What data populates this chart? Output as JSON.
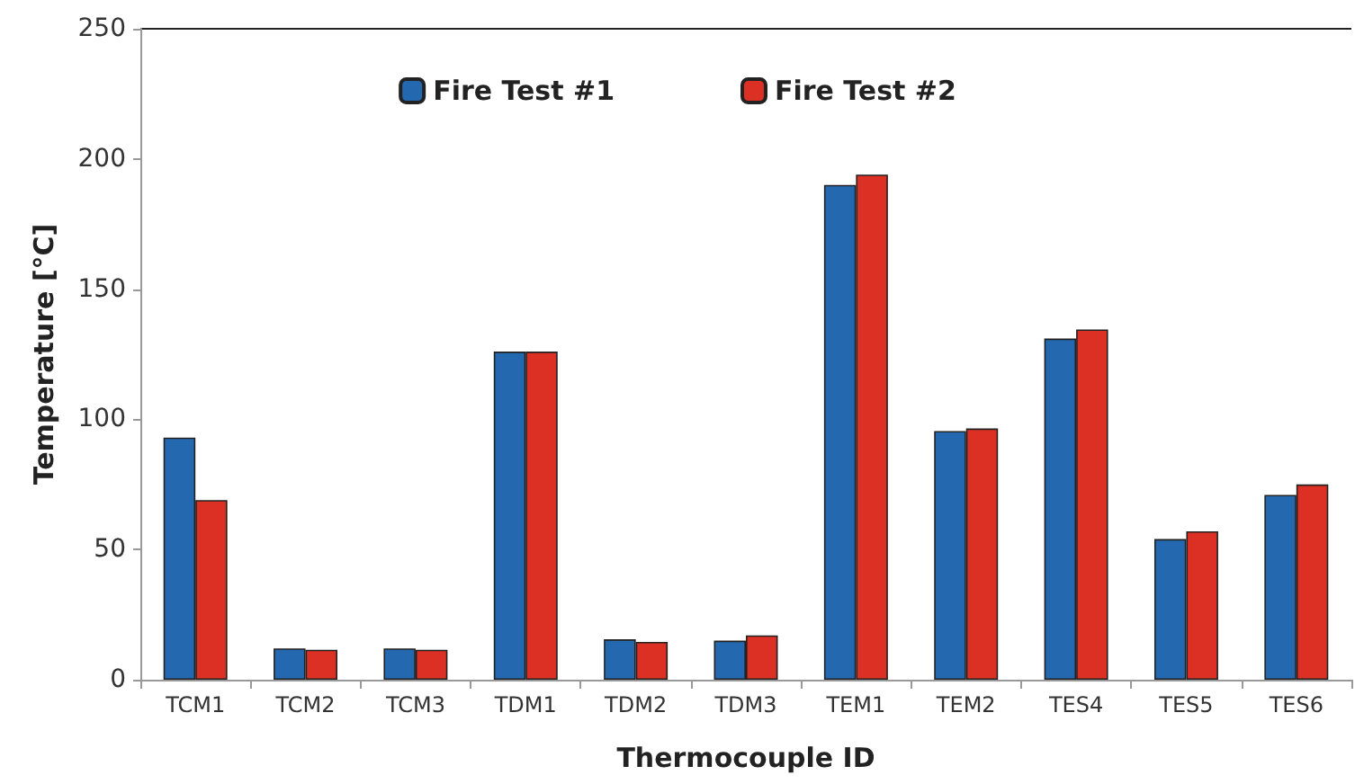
{
  "chart_data": {
    "type": "bar",
    "xlabel": "Thermocouple ID",
    "ylabel": "Temperature [°C]",
    "categories": [
      "TCM1",
      "TCM2",
      "TCM3",
      "TDM1",
      "TDM2",
      "TDM3",
      "TEM1",
      "TEM2",
      "TES4",
      "TES5",
      "TES6"
    ],
    "series": [
      {
        "name": "Fire Test #1",
        "color": "#2468b0",
        "values": [
          93,
          12,
          12,
          126,
          15.5,
          15,
          190,
          95.5,
          131,
          54,
          71
        ]
      },
      {
        "name": "Fire Test #2",
        "color": "#dc3024",
        "values": [
          69,
          11.5,
          11.5,
          126,
          14.5,
          17,
          194,
          96.5,
          134.5,
          57,
          75
        ]
      }
    ],
    "ylim": [
      0,
      250
    ],
    "yticks": [
      0,
      50,
      100,
      150,
      200,
      250
    ],
    "grid": false,
    "legend": "top"
  }
}
